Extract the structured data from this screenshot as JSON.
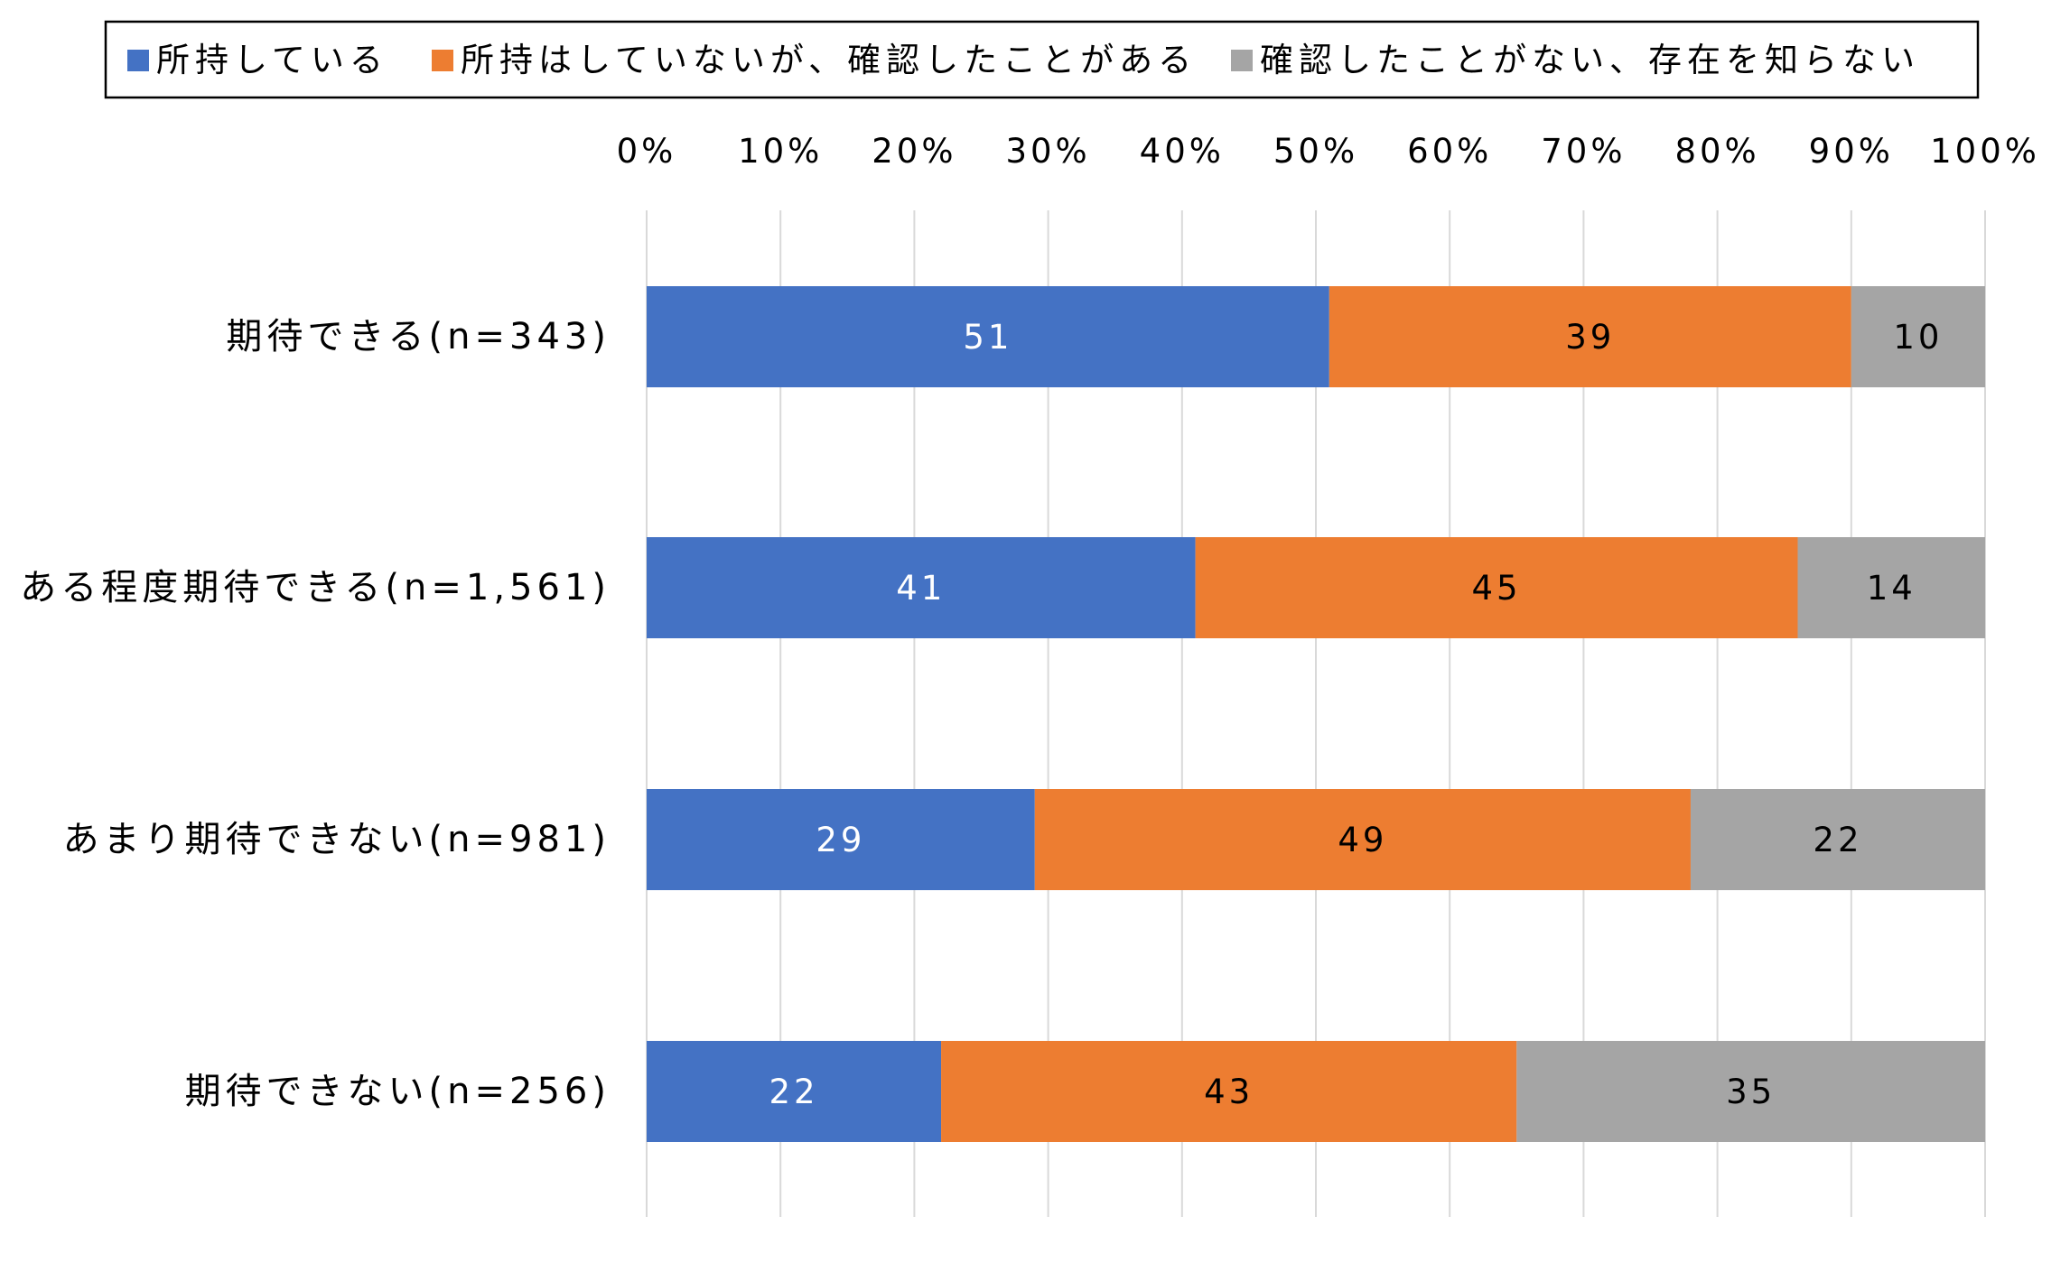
{
  "chart_data": {
    "type": "bar",
    "orientation": "horizontal",
    "stacked": "percent",
    "title": "",
    "xlabel": "",
    "ylabel": "",
    "xlim": [
      0,
      100
    ],
    "x_ticks": [
      "0%",
      "10%",
      "20%",
      "30%",
      "40%",
      "50%",
      "60%",
      "70%",
      "80%",
      "90%",
      "100%"
    ],
    "x_axis_position": "top",
    "grid": "vertical",
    "legend_position": "top",
    "categories": [
      "期待できる(n=343)",
      "ある程度期待できる(n=1,561)",
      "あまり期待できない(n=981)",
      "期待できない(n=256)"
    ],
    "series": [
      {
        "name": "所持している",
        "color": "#4472c4",
        "label_color": "#ffffff",
        "values": [
          51,
          41,
          29,
          22
        ]
      },
      {
        "name": "所持はしていないが、確認したことがある",
        "color": "#ed7d31",
        "label_color": "#000000",
        "values": [
          39,
          45,
          49,
          43
        ]
      },
      {
        "name": "確認したことがない、存在を知らない",
        "color": "#a5a5a5",
        "label_color": "#000000",
        "values": [
          10,
          14,
          22,
          35
        ]
      }
    ]
  }
}
